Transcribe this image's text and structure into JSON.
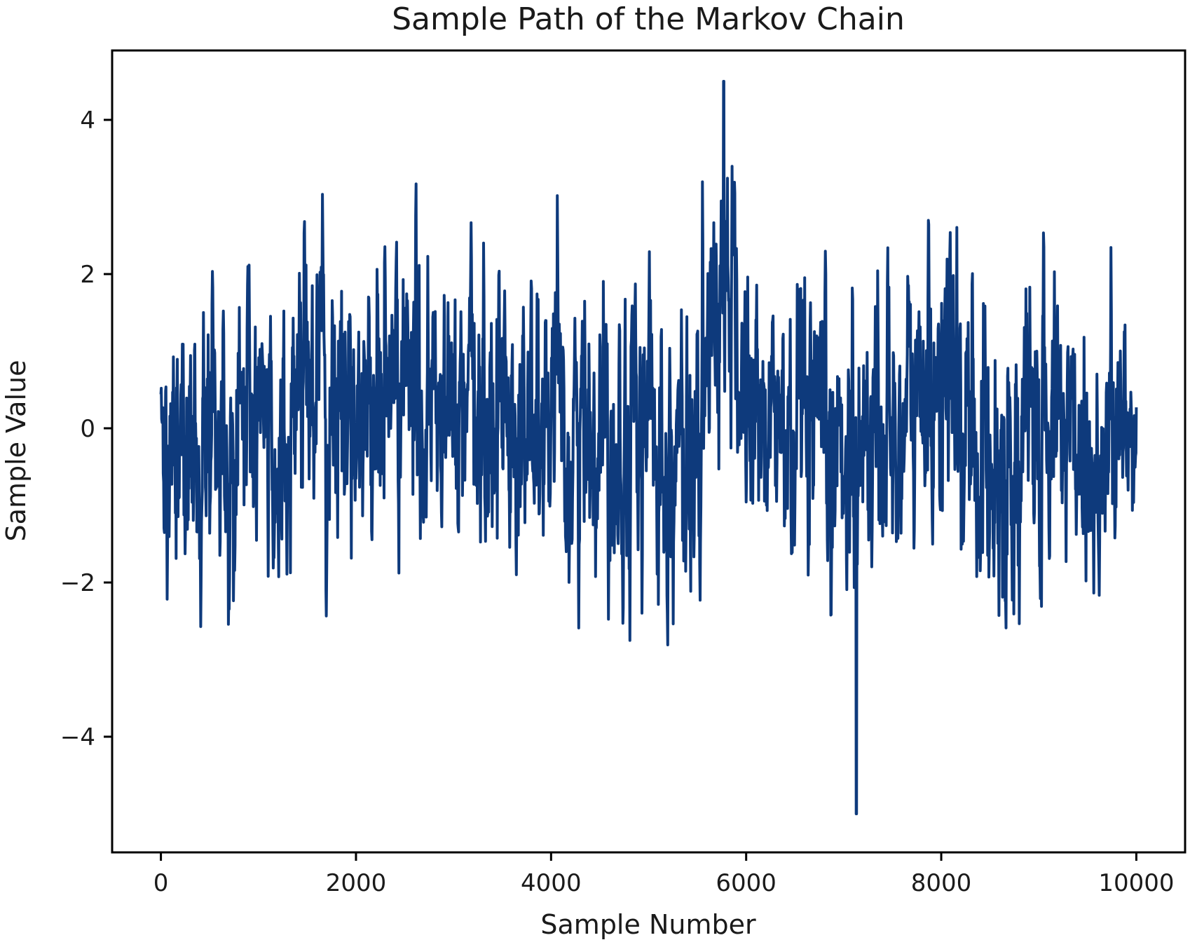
{
  "chart_data": {
    "type": "line",
    "title": "Sample Path of the Markov Chain",
    "xlabel": "Sample Number",
    "ylabel": "Sample Value",
    "xlim": [
      -500,
      10500
    ],
    "ylim": [
      -5.5,
      4.9
    ],
    "xticks": [
      0,
      2000,
      4000,
      6000,
      8000,
      10000
    ],
    "xtick_labels": [
      "0",
      "2000",
      "4000",
      "6000",
      "8000",
      "10000"
    ],
    "yticks": [
      -4,
      -2,
      0,
      2,
      4
    ],
    "ytick_labels": [
      "−4",
      "−2",
      "0",
      "2",
      "4"
    ],
    "grid": false,
    "series": [
      {
        "color": "#0e3a7c",
        "x": [
          0,
          250,
          500,
          750,
          1000,
          1250,
          1500,
          1750,
          2000,
          2250,
          2500,
          2750,
          3000,
          3250,
          3500,
          3750,
          4000,
          4250,
          4500,
          4750,
          5000,
          5250,
          5500,
          5750,
          6000,
          6250,
          6500,
          6750,
          7000,
          7250,
          7500,
          7750,
          8000,
          8250,
          8500,
          8750,
          9000,
          9250,
          9500,
          9750,
          10000
        ],
        "y": [
          0.1,
          -0.5,
          0.0,
          -0.2,
          0.1,
          -0.4,
          1.2,
          0.1,
          0.3,
          0.4,
          0.6,
          0.2,
          0.0,
          0.1,
          0.3,
          0.0,
          -0.1,
          -0.2,
          0.2,
          0.0,
          0.0,
          -0.4,
          -0.5,
          2.3,
          0.2,
          0.1,
          -0.3,
          -0.5,
          -0.2,
          0.0,
          -0.1,
          0.3,
          0.8,
          -0.1,
          -0.5,
          -0.3,
          -0.2,
          0.3,
          -0.4,
          -0.2,
          0.0
        ],
        "min": {
          "x": 7130,
          "y": -5.0
        },
        "max": {
          "x": 5770,
          "y": 4.5
        }
      }
    ]
  }
}
